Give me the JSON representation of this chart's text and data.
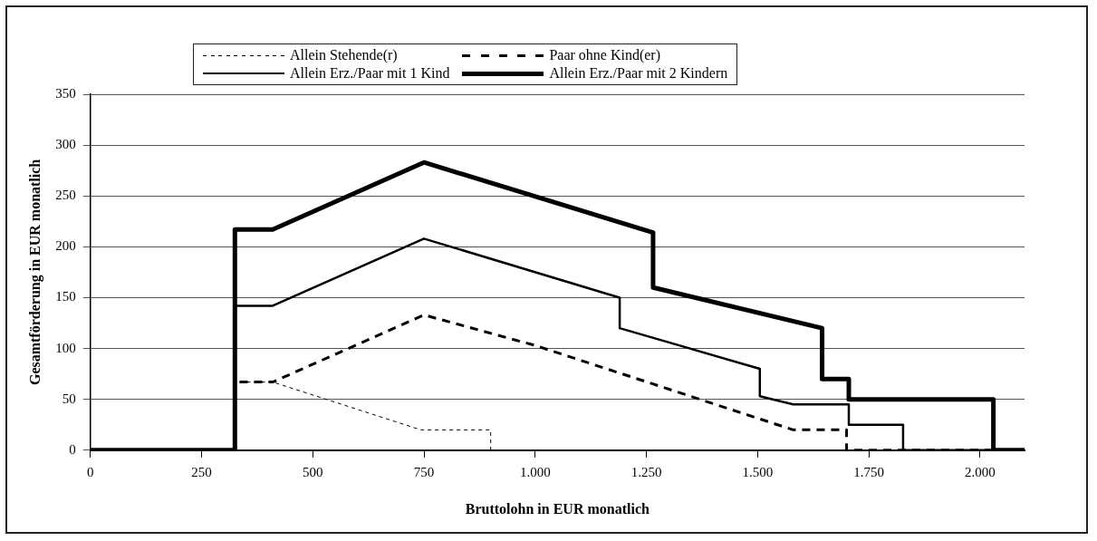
{
  "chart_data": {
    "type": "line",
    "xlabel": "Bruttolohn in EUR monatlich",
    "ylabel": "Gesamtförderung in EUR monatlich",
    "xlim": [
      0,
      2100
    ],
    "xticks": [
      0,
      250,
      500,
      750,
      {
        "value": 1000,
        "label": "1.000"
      },
      {
        "value": 1250,
        "label": "1.250"
      },
      {
        "value": 1500,
        "label": "1.500"
      },
      {
        "value": 1750,
        "label": "1.750"
      },
      {
        "value": 2000,
        "label": "2.000"
      }
    ],
    "ylim": [
      0,
      350
    ],
    "yticks": [
      0,
      50,
      100,
      150,
      200,
      250,
      300,
      350
    ],
    "grid": "y",
    "legend": "top",
    "marker": "none",
    "series": [
      {
        "name": "Allein Stehende(r)",
        "color": "#000000",
        "line_style": "dashed",
        "x": [
          0,
          325,
          325,
          410,
          743,
          900,
          900,
          2100
        ],
        "values": [
          0,
          0,
          67,
          67,
          20,
          20,
          0,
          0
        ]
      },
      {
        "name": "Paar ohne Kind(er)",
        "color": "#000000",
        "line_style": "dashed",
        "x": [
          0,
          325,
          325,
          410,
          750,
          1000,
          1580,
          1700,
          1700,
          2100
        ],
        "values": [
          0,
          0,
          67,
          67,
          133,
          103,
          20,
          20,
          0,
          0
        ]
      },
      {
        "name": "Allein Erz./Paar mit 1 Kind",
        "color": "#000000",
        "line_style": "solid",
        "x": [
          0,
          325,
          325,
          410,
          750,
          1190,
          1190,
          1505,
          1505,
          1580,
          1705,
          1705,
          1827,
          1827,
          2100
        ],
        "values": [
          0,
          0,
          142,
          142,
          208,
          150,
          120,
          80,
          53,
          45,
          45,
          25,
          25,
          0,
          0
        ]
      },
      {
        "name": "Allein Erz./Paar mit 2 Kindern",
        "color": "#000000",
        "line_style": "solid",
        "x": [
          0,
          325,
          325,
          410,
          750,
          1265,
          1265,
          1645,
          1645,
          1705,
          1705,
          2030,
          2030,
          2100
        ],
        "values": [
          0,
          0,
          217,
          217,
          283,
          214,
          160,
          120,
          70,
          70,
          50,
          50,
          0,
          0
        ]
      }
    ]
  }
}
